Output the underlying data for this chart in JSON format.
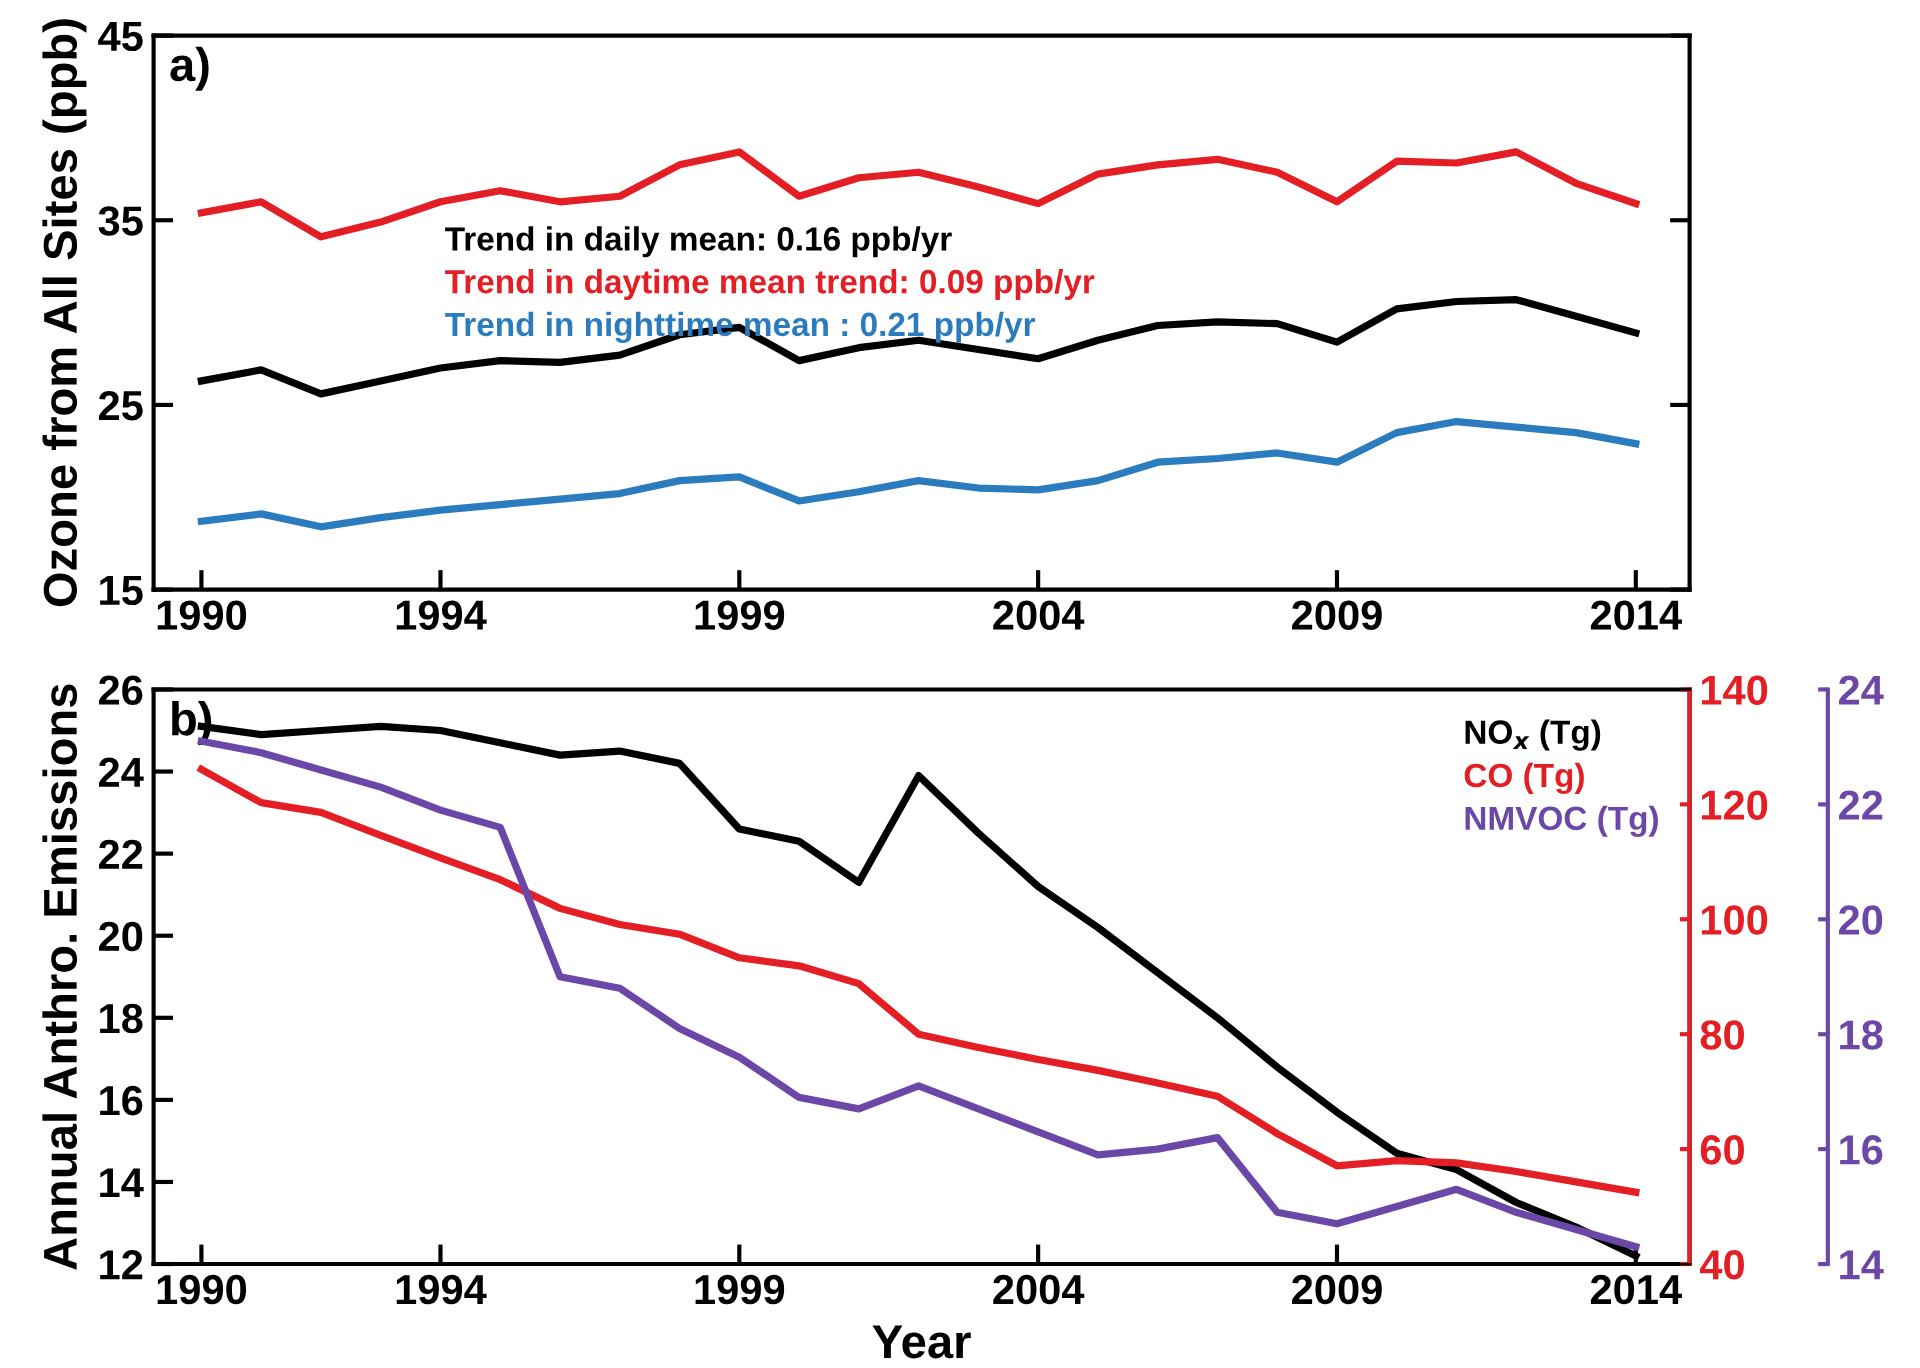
{
  "chart_data": [
    {
      "type": "line",
      "ylabel": "Ozone from All Sites (ppb)",
      "annotations": [
        "a)"
      ],
      "x": [
        1990,
        1991,
        1992,
        1993,
        1994,
        1995,
        1996,
        1997,
        1998,
        1999,
        2000,
        2001,
        2002,
        2003,
        2004,
        2005,
        2006,
        2007,
        2008,
        2009,
        2010,
        2011,
        2012,
        2013,
        2014
      ],
      "xlim": [
        1989.2,
        2014.9
      ],
      "xticks": [
        1990,
        1994,
        1999,
        2004,
        2009,
        2014
      ],
      "ylim": [
        15,
        45
      ],
      "yticks": [
        15,
        25,
        35,
        45
      ],
      "legend": "top",
      "grid": false,
      "series": [
        {
          "name": "Trend in daily mean: 0.16 ppb/yr",
          "color": "#000000",
          "values": [
            26.3,
            26.9,
            25.6,
            26.3,
            27.0,
            27.4,
            27.3,
            27.7,
            28.8,
            29.2,
            27.4,
            28.1,
            28.5,
            28.0,
            27.5,
            28.5,
            29.3,
            29.5,
            29.4,
            28.4,
            30.2,
            30.6,
            30.7,
            29.8,
            28.9
          ]
        },
        {
          "name": "Trend in daytime mean trend: 0.09 ppb/yr",
          "color": "#e31e24",
          "values": [
            35.4,
            36.0,
            34.1,
            34.9,
            36.0,
            36.6,
            36.0,
            36.3,
            38.0,
            38.7,
            36.3,
            37.3,
            37.6,
            36.8,
            35.9,
            37.5,
            38.0,
            38.3,
            37.6,
            36.0,
            38.2,
            38.1,
            38.7,
            37.0,
            35.9
          ]
        },
        {
          "name": "Trend in nighttime mean : 0.21 ppb/yr",
          "color": "#2b7bbf",
          "values": [
            18.7,
            19.1,
            18.4,
            18.9,
            19.3,
            19.6,
            19.9,
            20.2,
            20.9,
            21.1,
            19.8,
            20.3,
            20.9,
            20.5,
            20.4,
            20.9,
            21.9,
            22.1,
            22.4,
            21.9,
            23.5,
            24.1,
            23.8,
            23.5,
            22.9
          ]
        }
      ]
    },
    {
      "type": "line",
      "xlabel": "Year",
      "ylabel": "Annual Anthro. Emissions",
      "annotations": [
        "b)"
      ],
      "x": [
        1990,
        1991,
        1992,
        1993,
        1994,
        1995,
        1996,
        1997,
        1998,
        1999,
        2000,
        2001,
        2002,
        2003,
        2004,
        2005,
        2006,
        2007,
        2008,
        2009,
        2010,
        2011,
        2012,
        2013,
        2014
      ],
      "xlim": [
        1989.2,
        2014.9
      ],
      "xticks": [
        1990,
        1994,
        1999,
        2004,
        2009,
        2014
      ],
      "ylim": [
        12,
        26
      ],
      "yticks": [
        12,
        14,
        16,
        18,
        20,
        22,
        24,
        26
      ],
      "y2lim": [
        40,
        140
      ],
      "y2ticks": [
        40,
        60,
        80,
        100,
        120,
        140
      ],
      "y3lim": [
        14,
        24
      ],
      "y3ticks": [
        14,
        16,
        18,
        20,
        22,
        24
      ],
      "legend": "top right",
      "grid": false,
      "series": [
        {
          "name": "NO$_{x}$ (Tg)",
          "color": "#000000",
          "values": [
            25.1,
            24.9,
            25.0,
            25.1,
            25.0,
            24.7,
            24.4,
            24.5,
            24.2,
            22.6,
            22.3,
            21.3,
            23.9,
            22.5,
            21.2,
            20.2,
            19.1,
            18.0,
            16.8,
            15.7,
            14.7,
            14.3,
            13.5,
            12.9,
            12.2
          ]
        },
        {
          "name": "CO (Tg)",
          "color": "#e31e24",
          "axis": "y2",
          "values": [
            126.1,
            120.3,
            118.6,
            114.6,
            110.7,
            106.9,
            101.9,
            99.1,
            97.4,
            93.3,
            91.9,
            88.8,
            80.0,
            77.7,
            75.6,
            73.7,
            71.5,
            69.2,
            62.7,
            57.1,
            58.0,
            57.6,
            56.1,
            54.3,
            52.5
          ]
        },
        {
          "name": "NMVOC (Tg)",
          "color": "#6b48a8",
          "axis": "y3",
          "values": [
            23.1,
            22.9,
            22.6,
            22.3,
            21.9,
            21.6,
            19.0,
            18.8,
            18.1,
            17.6,
            16.9,
            16.7,
            17.1,
            16.7,
            16.3,
            15.9,
            16.0,
            16.2,
            14.9,
            14.7,
            15.0,
            15.3,
            14.9,
            14.6,
            14.3
          ]
        }
      ]
    }
  ]
}
